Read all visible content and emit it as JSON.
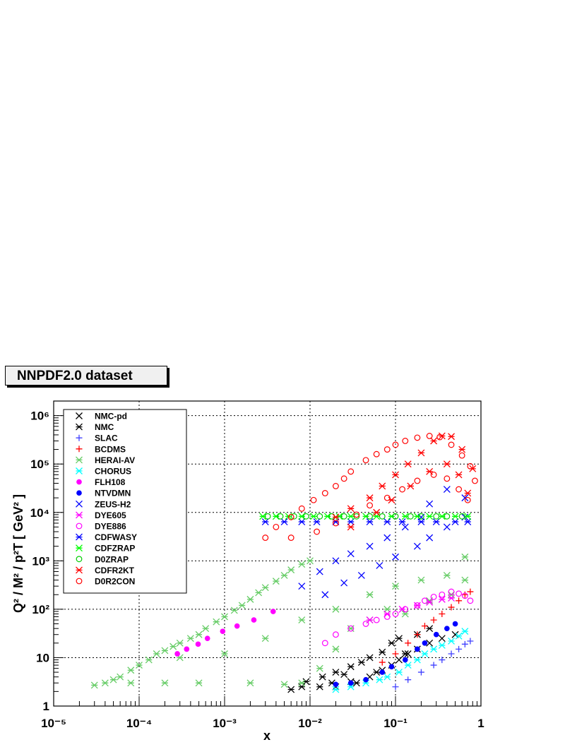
{
  "title_box": "NNPDF2.0 dataset",
  "chart_data": {
    "type": "scatter",
    "xlabel": "x",
    "ylabel": "Q² / M² / p²T [ GeV² ]",
    "xscale": "log",
    "yscale": "log",
    "xlim": [
      1e-05,
      1
    ],
    "ylim": [
      1,
      2000000
    ],
    "grid": true,
    "legend_position": "top-left",
    "x_tick_labels": [
      "10⁻⁵",
      "10⁻⁴",
      "10⁻³",
      "10⁻²",
      "10⁻¹",
      "1"
    ],
    "y_tick_labels": [
      "1",
      "10",
      "10²",
      "10³",
      "10⁴",
      "10⁵",
      "10⁶"
    ],
    "series": [
      {
        "name": "NMC-pd",
        "color": "#000000",
        "marker": "x",
        "points": [
          [
            0.02,
            2.5
          ],
          [
            0.03,
            3.2
          ],
          [
            0.05,
            4
          ],
          [
            0.07,
            5.5
          ],
          [
            0.09,
            7
          ],
          [
            0.11,
            9
          ],
          [
            0.14,
            12
          ],
          [
            0.18,
            15
          ],
          [
            0.25,
            20
          ],
          [
            0.35,
            25
          ],
          [
            0.5,
            30
          ]
        ]
      },
      {
        "name": "NMC",
        "color": "#000000",
        "marker": "asterisk",
        "points": [
          [
            0.006,
            2.2
          ],
          [
            0.008,
            2.5
          ],
          [
            0.009,
            3.2
          ],
          [
            0.013,
            2.5
          ],
          [
            0.014,
            4
          ],
          [
            0.018,
            3
          ],
          [
            0.02,
            5
          ],
          [
            0.025,
            4.5
          ],
          [
            0.03,
            6.5
          ],
          [
            0.035,
            3
          ],
          [
            0.04,
            8
          ],
          [
            0.05,
            10
          ],
          [
            0.06,
            5
          ],
          [
            0.07,
            13
          ],
          [
            0.09,
            20
          ],
          [
            0.11,
            25
          ],
          [
            0.13,
            12
          ],
          [
            0.18,
            30
          ],
          [
            0.25,
            40
          ]
        ]
      },
      {
        "name": "SLAC",
        "color": "#4040ff",
        "marker": "plus",
        "points": [
          [
            0.1,
            2.5
          ],
          [
            0.14,
            3.5
          ],
          [
            0.2,
            5
          ],
          [
            0.28,
            7
          ],
          [
            0.35,
            9
          ],
          [
            0.45,
            12
          ],
          [
            0.55,
            15
          ],
          [
            0.65,
            19
          ],
          [
            0.75,
            22
          ]
        ]
      },
      {
        "name": "BCDMS",
        "color": "#ff0000",
        "marker": "plus",
        "points": [
          [
            0.07,
            8
          ],
          [
            0.1,
            12
          ],
          [
            0.14,
            20
          ],
          [
            0.18,
            30
          ],
          [
            0.22,
            45
          ],
          [
            0.28,
            60
          ],
          [
            0.35,
            80
          ],
          [
            0.45,
            110
          ],
          [
            0.55,
            150
          ],
          [
            0.65,
            200
          ],
          [
            0.75,
            230
          ]
        ]
      },
      {
        "name": "HERAI-AV",
        "color": "#66cc66",
        "marker": "asterisk",
        "points": [
          [
            3e-05,
            2.7
          ],
          [
            4e-05,
            3
          ],
          [
            5e-05,
            3.5
          ],
          [
            6e-05,
            4
          ],
          [
            8e-05,
            5.5
          ],
          [
            0.0001,
            7
          ],
          [
            0.00013,
            9
          ],
          [
            0.00016,
            12
          ],
          [
            0.0002,
            14
          ],
          [
            0.00025,
            17
          ],
          [
            0.0003,
            20
          ],
          [
            0.0004,
            25
          ],
          [
            0.0005,
            30
          ],
          [
            0.0006,
            40
          ],
          [
            0.0008,
            55
          ],
          [
            0.001,
            70
          ],
          [
            0.0013,
            95
          ],
          [
            0.0016,
            120
          ],
          [
            0.002,
            160
          ],
          [
            0.0025,
            220
          ],
          [
            0.003,
            280
          ],
          [
            0.004,
            380
          ],
          [
            0.005,
            500
          ],
          [
            0.006,
            650
          ],
          [
            0.008,
            850
          ],
          [
            0.01,
            1000
          ],
          [
            8e-05,
            3
          ],
          [
            0.0002,
            3
          ],
          [
            0.0005,
            3
          ],
          [
            0.002,
            3
          ],
          [
            0.005,
            2.8
          ],
          [
            0.008,
            3
          ],
          [
            0.0003,
            10
          ],
          [
            0.001,
            12
          ],
          [
            0.003,
            25
          ],
          [
            0.008,
            60
          ],
          [
            0.02,
            100
          ],
          [
            0.05,
            200
          ],
          [
            0.1,
            300
          ],
          [
            0.2,
            400
          ],
          [
            0.4,
            500
          ],
          [
            0.65,
            400
          ],
          [
            0.013,
            6
          ],
          [
            0.02,
            15
          ],
          [
            0.03,
            40
          ],
          [
            0.05,
            60
          ],
          [
            0.08,
            100
          ],
          [
            0.13,
            80
          ],
          [
            0.25,
            150
          ],
          [
            0.45,
            200
          ],
          [
            0.65,
            1200
          ]
        ]
      },
      {
        "name": "CHORUS",
        "color": "#00ffff",
        "marker": "asterisk",
        "points": [
          [
            0.02,
            2.2
          ],
          [
            0.03,
            2.5
          ],
          [
            0.045,
            3
          ],
          [
            0.065,
            3.5
          ],
          [
            0.08,
            4
          ],
          [
            0.11,
            5
          ],
          [
            0.14,
            7
          ],
          [
            0.18,
            9
          ],
          [
            0.22,
            12
          ],
          [
            0.28,
            15
          ],
          [
            0.35,
            18
          ],
          [
            0.45,
            22
          ],
          [
            0.55,
            28
          ],
          [
            0.65,
            35
          ]
        ]
      },
      {
        "name": "FLH108",
        "color": "#ff00ff",
        "marker": "dot",
        "points": [
          [
            0.00028,
            12
          ],
          [
            0.00036,
            15
          ],
          [
            0.00049,
            19
          ],
          [
            0.00063,
            25
          ],
          [
            0.00095,
            35
          ],
          [
            0.0014,
            45
          ],
          [
            0.0022,
            60
          ],
          [
            0.0037,
            90
          ]
        ]
      },
      {
        "name": "NTVDMN",
        "color": "#0000ff",
        "marker": "dot",
        "points": [
          [
            0.02,
            2.8
          ],
          [
            0.03,
            3
          ],
          [
            0.045,
            3.5
          ],
          [
            0.07,
            5
          ],
          [
            0.09,
            6.5
          ],
          [
            0.13,
            9
          ],
          [
            0.18,
            15
          ],
          [
            0.22,
            20
          ],
          [
            0.3,
            30
          ],
          [
            0.4,
            40
          ],
          [
            0.5,
            50
          ]
        ]
      },
      {
        "name": "ZEUS-H2",
        "color": "#0000ff",
        "marker": "x",
        "points": [
          [
            0.008,
            300
          ],
          [
            0.013,
            600
          ],
          [
            0.02,
            1000
          ],
          [
            0.03,
            1400
          ],
          [
            0.05,
            2000
          ],
          [
            0.08,
            3000
          ],
          [
            0.13,
            5000
          ],
          [
            0.2,
            8000
          ],
          [
            0.25,
            15000
          ],
          [
            0.4,
            30000
          ],
          [
            0.65,
            20000
          ],
          [
            0.015,
            200
          ],
          [
            0.025,
            350
          ],
          [
            0.04,
            500
          ],
          [
            0.065,
            800
          ],
          [
            0.1,
            1200
          ],
          [
            0.18,
            2000
          ],
          [
            0.25,
            3000
          ],
          [
            0.4,
            5000
          ],
          [
            0.65,
            8000
          ]
        ]
      },
      {
        "name": "DYE605",
        "color": "#ff00ff",
        "marker": "asterisk",
        "points": [
          [
            0.05,
            60
          ],
          [
            0.08,
            80
          ],
          [
            0.12,
            100
          ],
          [
            0.18,
            120
          ],
          [
            0.25,
            140
          ],
          [
            0.35,
            160
          ],
          [
            0.45,
            170
          ]
        ]
      },
      {
        "name": "DYE886",
        "color": "#ff00ff",
        "marker": "circle",
        "points": [
          [
            0.015,
            20
          ],
          [
            0.02,
            30
          ],
          [
            0.03,
            40
          ],
          [
            0.045,
            50
          ],
          [
            0.06,
            60
          ],
          [
            0.08,
            70
          ],
          [
            0.1,
            80
          ],
          [
            0.13,
            100
          ],
          [
            0.18,
            120
          ],
          [
            0.22,
            150
          ],
          [
            0.28,
            180
          ],
          [
            0.35,
            200
          ],
          [
            0.45,
            230
          ],
          [
            0.55,
            210
          ],
          [
            0.65,
            190
          ],
          [
            0.75,
            150
          ]
        ]
      },
      {
        "name": "CDFWASY",
        "color": "#0000ff",
        "marker": "asterisk",
        "points": [
          [
            0.003,
            6400
          ],
          [
            0.005,
            6400
          ],
          [
            0.008,
            6400
          ],
          [
            0.012,
            6400
          ],
          [
            0.02,
            6400
          ],
          [
            0.03,
            6400
          ],
          [
            0.05,
            6400
          ],
          [
            0.08,
            6400
          ],
          [
            0.12,
            6400
          ],
          [
            0.2,
            6400
          ],
          [
            0.3,
            6400
          ],
          [
            0.5,
            6400
          ],
          [
            0.7,
            6400
          ]
        ]
      },
      {
        "name": "CDFZRAP",
        "color": "#00ff00",
        "marker": "asterisk",
        "points": [
          [
            0.0028,
            8300
          ],
          [
            0.004,
            8300
          ],
          [
            0.0056,
            8300
          ],
          [
            0.008,
            8300
          ],
          [
            0.011,
            8300
          ],
          [
            0.016,
            8300
          ],
          [
            0.022,
            8300
          ],
          [
            0.03,
            8300
          ],
          [
            0.045,
            8300
          ],
          [
            0.06,
            8300
          ],
          [
            0.09,
            8300
          ],
          [
            0.13,
            8300
          ],
          [
            0.18,
            8300
          ],
          [
            0.25,
            8300
          ],
          [
            0.35,
            8300
          ],
          [
            0.5,
            8300
          ],
          [
            0.7,
            8300
          ]
        ]
      },
      {
        "name": "D0ZRAP",
        "color": "#00cc00",
        "marker": "circle",
        "points": [
          [
            0.0032,
            8300
          ],
          [
            0.0045,
            8300
          ],
          [
            0.0065,
            8300
          ],
          [
            0.009,
            8300
          ],
          [
            0.013,
            8300
          ],
          [
            0.018,
            8300
          ],
          [
            0.025,
            8300
          ],
          [
            0.035,
            8300
          ],
          [
            0.05,
            8300
          ],
          [
            0.07,
            8300
          ],
          [
            0.1,
            8300
          ],
          [
            0.15,
            8300
          ],
          [
            0.2,
            8300
          ],
          [
            0.3,
            8300
          ],
          [
            0.4,
            8300
          ],
          [
            0.6,
            8300
          ]
        ]
      },
      {
        "name": "CDFR2KT",
        "color": "#ff0000",
        "marker": "asterisk",
        "points": [
          [
            0.02,
            8000
          ],
          [
            0.03,
            12000
          ],
          [
            0.05,
            20000
          ],
          [
            0.07,
            35000
          ],
          [
            0.1,
            60000
          ],
          [
            0.14,
            100000
          ],
          [
            0.2,
            170000
          ],
          [
            0.28,
            300000
          ],
          [
            0.35,
            380000
          ],
          [
            0.45,
            370000
          ],
          [
            0.6,
            200000
          ],
          [
            0.8,
            80000
          ],
          [
            0.03,
            5000
          ],
          [
            0.06,
            10000
          ],
          [
            0.09,
            18000
          ],
          [
            0.15,
            35000
          ],
          [
            0.25,
            70000
          ],
          [
            0.4,
            100000
          ],
          [
            0.55,
            60000
          ],
          [
            0.7,
            25000
          ]
        ]
      },
      {
        "name": "D0R2CON",
        "color": "#ff0000",
        "marker": "circle",
        "points": [
          [
            0.003,
            3000
          ],
          [
            0.004,
            5000
          ],
          [
            0.006,
            8000
          ],
          [
            0.008,
            12000
          ],
          [
            0.011,
            18000
          ],
          [
            0.015,
            25000
          ],
          [
            0.02,
            35000
          ],
          [
            0.025,
            50000
          ],
          [
            0.03,
            70000
          ],
          [
            0.045,
            120000
          ],
          [
            0.06,
            160000
          ],
          [
            0.08,
            200000
          ],
          [
            0.1,
            250000
          ],
          [
            0.13,
            300000
          ],
          [
            0.18,
            350000
          ],
          [
            0.25,
            380000
          ],
          [
            0.33,
            360000
          ],
          [
            0.45,
            250000
          ],
          [
            0.6,
            150000
          ],
          [
            0.75,
            90000
          ],
          [
            0.85,
            45000
          ],
          [
            0.006,
            3000
          ],
          [
            0.012,
            4000
          ],
          [
            0.02,
            6000
          ],
          [
            0.035,
            9000
          ],
          [
            0.05,
            14000
          ],
          [
            0.08,
            20000
          ],
          [
            0.12,
            30000
          ],
          [
            0.18,
            45000
          ],
          [
            0.28,
            60000
          ],
          [
            0.4,
            50000
          ],
          [
            0.55,
            30000
          ],
          [
            0.7,
            18000
          ]
        ]
      }
    ]
  }
}
